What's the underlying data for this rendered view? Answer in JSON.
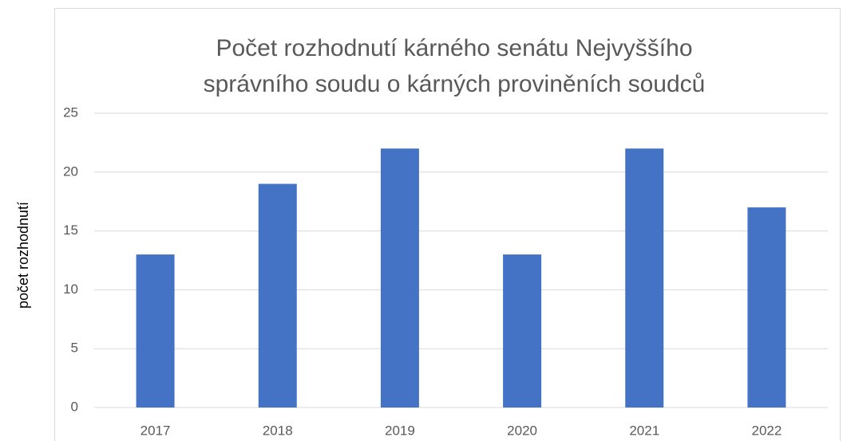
{
  "chart_data": {
    "type": "bar",
    "title": "Počet rozhodnutí kárného senátu Nejvyššího správního soudu o kárných proviněních soudců",
    "y_label": "počet rozhodnutí",
    "categories": [
      "2017",
      "2018",
      "2019",
      "2020",
      "2021",
      "2022"
    ],
    "values": [
      13,
      19,
      22,
      13,
      22,
      17
    ],
    "color": "#4472c4",
    "ylim": [
      0,
      25
    ],
    "yticks": [
      0,
      5,
      10,
      15,
      20,
      25
    ],
    "grid": true
  }
}
